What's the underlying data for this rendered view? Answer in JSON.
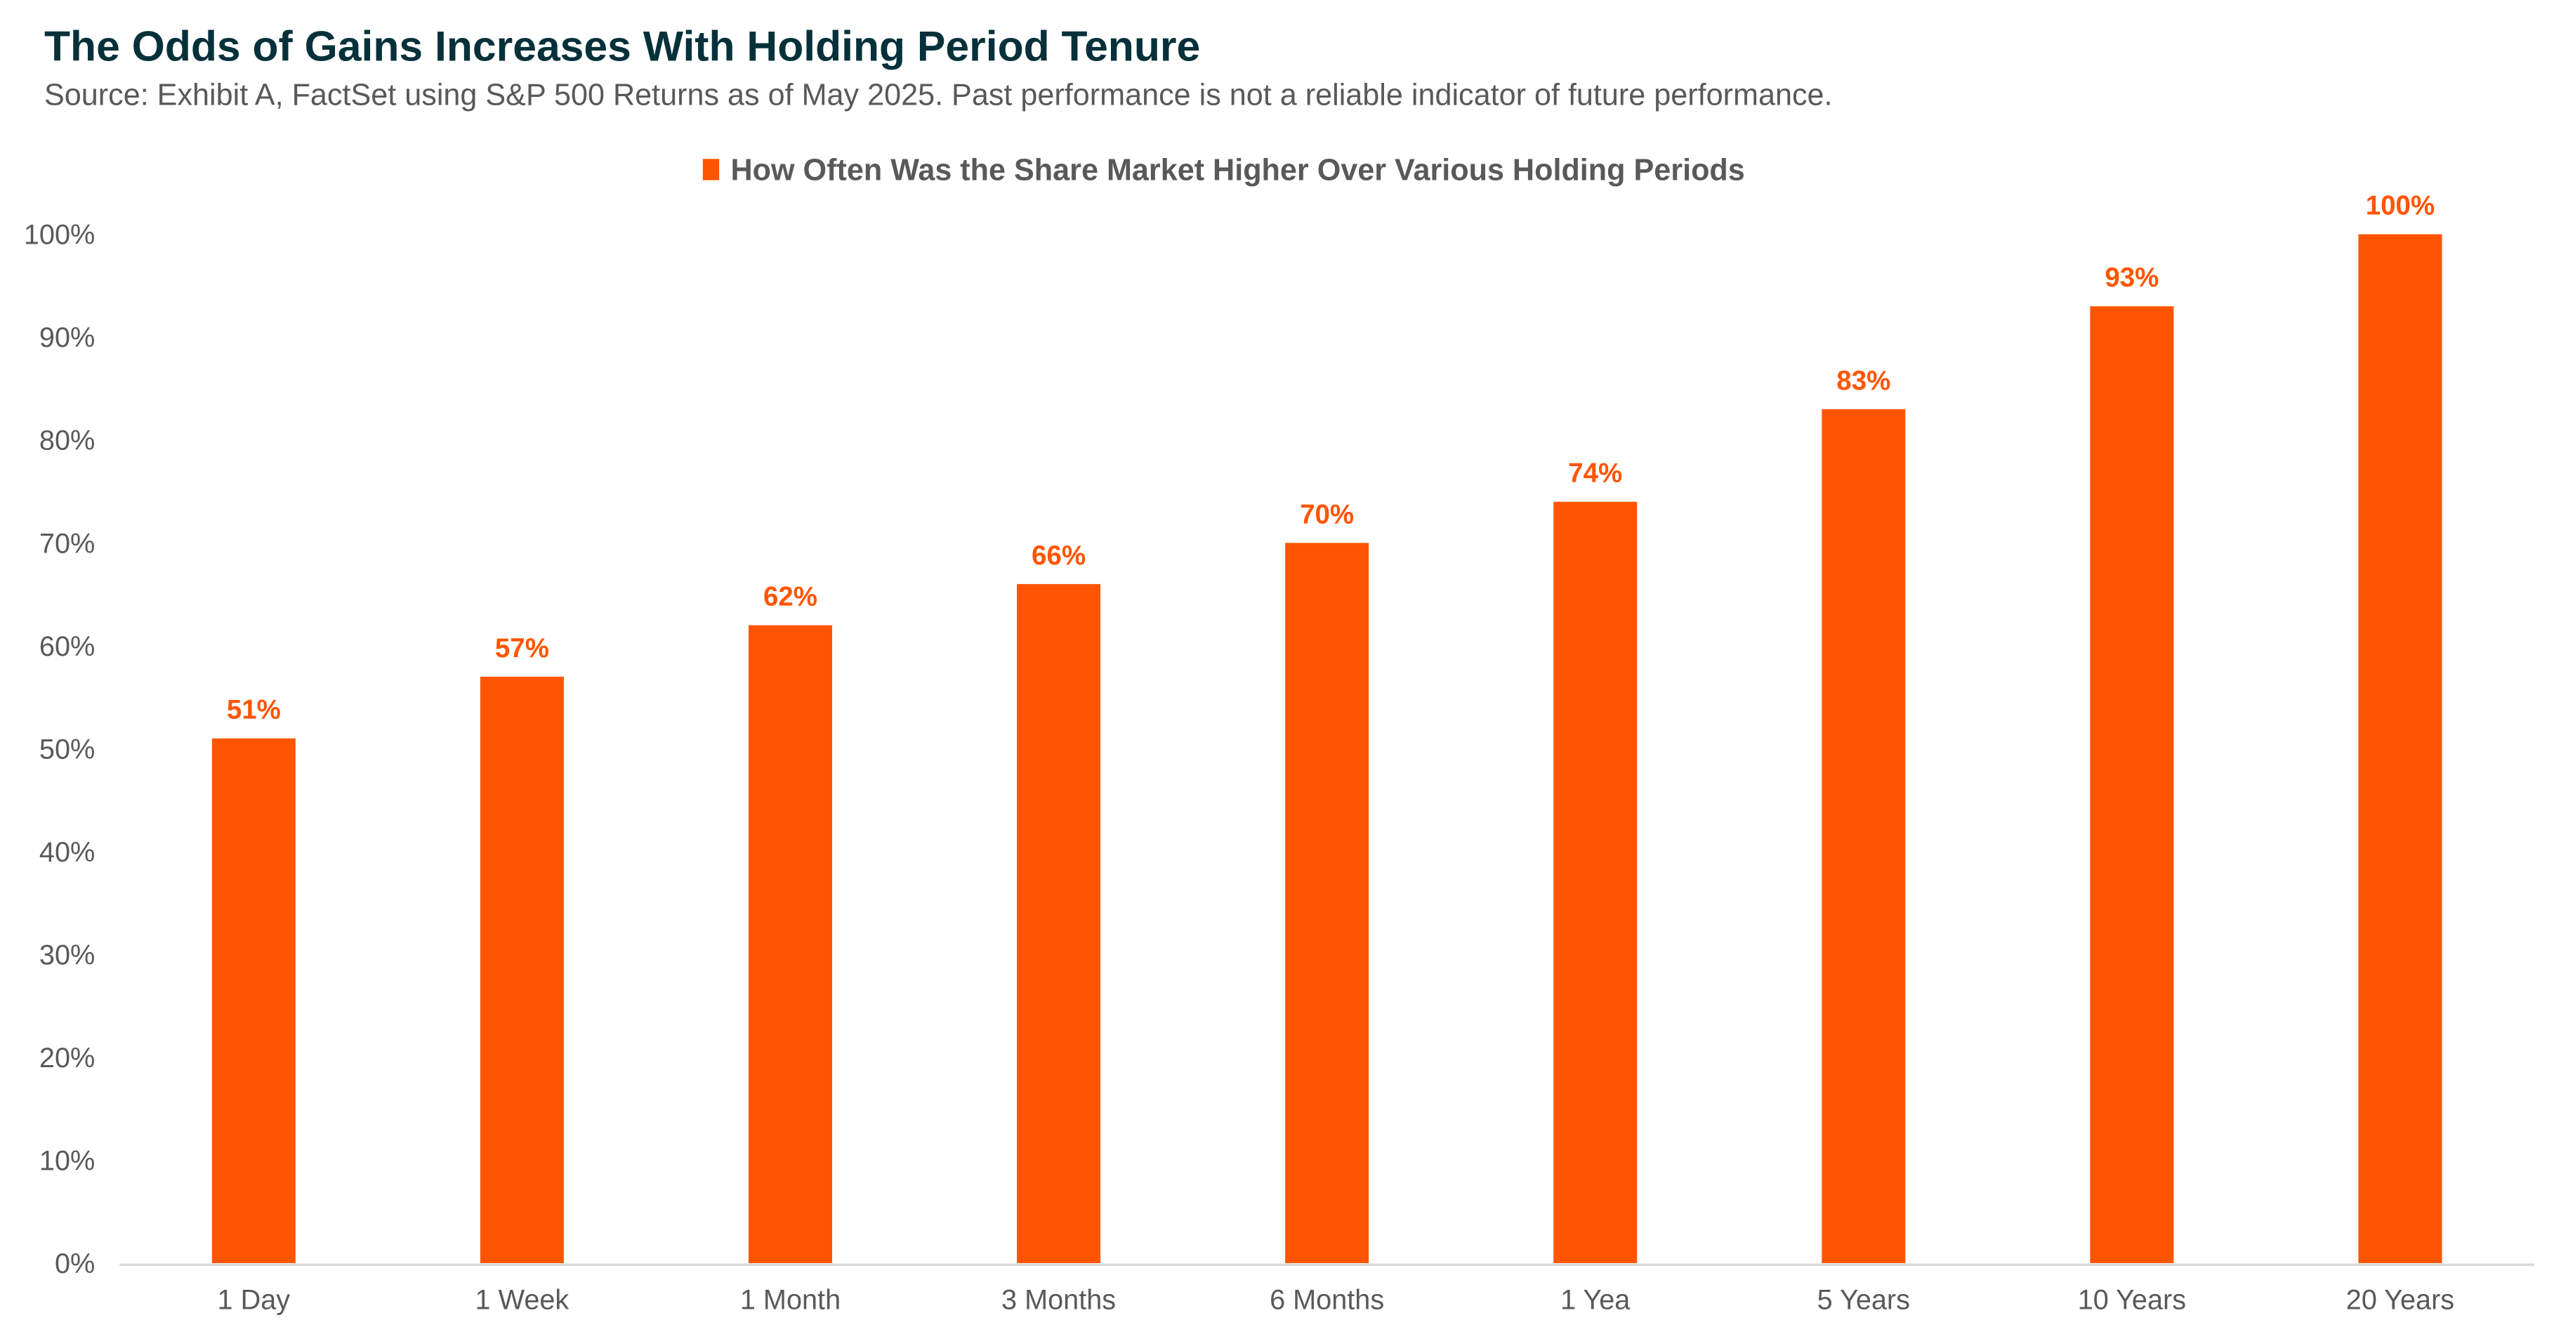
{
  "chart_data": {
    "type": "bar",
    "title": "The Odds of Gains Increases With Holding Period Tenure",
    "subtitle": "Source: Exhibit A, FactSet using S&P 500 Returns as of May 2025. Past performance is not a reliable indicator of future performance.",
    "legend": {
      "label": "How Often Was the Share Market Higher Over Various Holding Periods",
      "placement": "top-center"
    },
    "categories": [
      "1 Day",
      "1 Week",
      "1 Month",
      "3 Months",
      "6 Months",
      "1 Yea",
      "5 Years",
      "10 Years",
      "20 Years"
    ],
    "values": [
      51,
      57,
      62,
      66,
      70,
      74,
      83,
      93,
      100
    ],
    "data_labels": [
      "51%",
      "57%",
      "62%",
      "66%",
      "70%",
      "74%",
      "83%",
      "93%",
      "100%"
    ],
    "yticks": [
      "0%",
      "10%",
      "20%",
      "30%",
      "40%",
      "50%",
      "60%",
      "70%",
      "80%",
      "90%",
      "100%"
    ],
    "ylim": [
      0,
      100
    ],
    "xlabel": "",
    "ylabel": "",
    "grid": false,
    "colors": {
      "bar": "#FF5500",
      "axis": "#D9D9D9",
      "title": "#06313A",
      "text": "#595959"
    }
  }
}
